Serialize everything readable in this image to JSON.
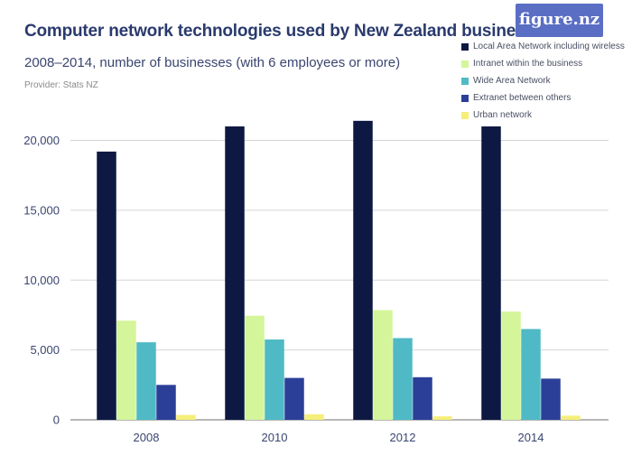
{
  "logo": "figure.nz",
  "chart_data": {
    "type": "bar",
    "title": "Computer network technologies used by New Zealand businesses",
    "subtitle": "2008–2014, number of businesses (with 6 employees or more)",
    "provider": "Provider: Stats NZ",
    "categories": [
      "2008",
      "2010",
      "2012",
      "2014"
    ],
    "series": [
      {
        "name": "Local Area Network including wireless",
        "color": "#0d1843",
        "values": [
          19200,
          21000,
          21400,
          21000
        ]
      },
      {
        "name": "Intranet within the business",
        "color": "#d4f59a",
        "values": [
          7100,
          7450,
          7850,
          7750
        ]
      },
      {
        "name": "Wide Area Network",
        "color": "#4fbac6",
        "values": [
          5550,
          5750,
          5850,
          6500
        ]
      },
      {
        "name": "Extranet between others",
        "color": "#2b3f99",
        "values": [
          2500,
          3000,
          3050,
          2950
        ]
      },
      {
        "name": "Urban network",
        "color": "#f5ef7a",
        "values": [
          350,
          400,
          250,
          300
        ]
      }
    ],
    "yticks": [
      {
        "value": 0,
        "label": "0"
      },
      {
        "value": 5000,
        "label": "5,000"
      },
      {
        "value": 10000,
        "label": "10,000"
      },
      {
        "value": 15000,
        "label": "15,000"
      },
      {
        "value": 20000,
        "label": "20,000"
      }
    ],
    "ylim": [
      0,
      22000
    ],
    "grid": true,
    "legend_position": "top-right"
  }
}
